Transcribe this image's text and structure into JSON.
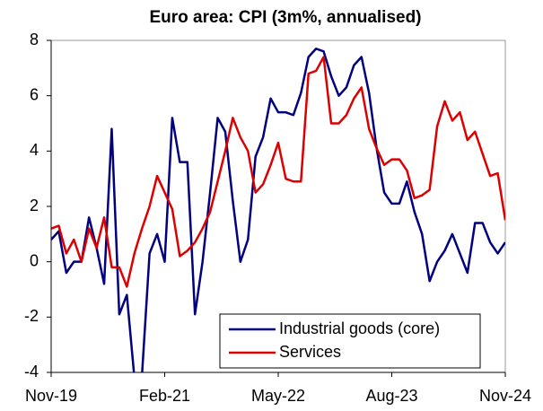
{
  "chart_data": {
    "type": "line",
    "title": "Euro area: CPI (3m%, annualised)",
    "categories": [
      "Nov-19",
      null,
      null,
      null,
      null,
      null,
      null,
      null,
      null,
      null,
      null,
      null,
      null,
      null,
      null,
      "Feb-21",
      null,
      null,
      null,
      null,
      null,
      null,
      null,
      null,
      null,
      null,
      null,
      null,
      null,
      null,
      "May-22",
      null,
      null,
      null,
      null,
      null,
      null,
      null,
      null,
      null,
      null,
      null,
      null,
      null,
      null,
      "Aug-23",
      null,
      null,
      null,
      null,
      null,
      null,
      null,
      null,
      null,
      null,
      null,
      null,
      null,
      null,
      "Nov-24"
    ],
    "series": [
      {
        "name": "Industrial goods (core)",
        "color": "#000080",
        "values": [
          0.8,
          1.1,
          -0.4,
          0.0,
          0.0,
          1.6,
          0.5,
          -0.8,
          4.8,
          -1.9,
          -1.2,
          -4.2,
          -4.1,
          0.3,
          1.0,
          0.0,
          5.2,
          3.6,
          3.6,
          -1.9,
          0.0,
          2.5,
          5.2,
          4.7,
          2.2,
          0.0,
          0.8,
          3.8,
          4.5,
          5.9,
          5.4,
          5.4,
          5.3,
          6.1,
          7.4,
          7.7,
          7.6,
          6.7,
          6.0,
          6.3,
          7.1,
          7.4,
          6.1,
          4.1,
          2.5,
          2.1,
          2.1,
          2.9,
          1.8,
          1.0,
          -0.7,
          0.0,
          0.4,
          1.0,
          0.3,
          -0.4,
          1.4,
          1.4,
          0.7,
          0.3,
          0.7
        ]
      },
      {
        "name": "Services",
        "color": "#dd0000",
        "values": [
          1.2,
          1.3,
          0.3,
          0.8,
          0.0,
          1.2,
          0.5,
          1.6,
          -0.2,
          -0.2,
          -0.9,
          0.3,
          1.2,
          2.0,
          3.1,
          2.5,
          1.9,
          0.2,
          0.4,
          0.7,
          1.2,
          1.8,
          2.9,
          4.0,
          5.2,
          4.5,
          4.0,
          2.5,
          2.8,
          3.5,
          4.3,
          3.0,
          2.9,
          2.9,
          6.8,
          6.9,
          7.4,
          5.0,
          5.0,
          5.3,
          5.9,
          6.3,
          4.8,
          4.1,
          3.5,
          3.7,
          3.7,
          3.3,
          2.3,
          2.4,
          2.6,
          4.9,
          5.8,
          5.1,
          5.4,
          4.4,
          4.7,
          3.9,
          3.1,
          3.2,
          1.5
        ]
      }
    ],
    "ylim": [
      -4,
      8
    ],
    "yticks": [
      -4,
      -2,
      0,
      2,
      4,
      6,
      8
    ],
    "legend": "lower right"
  }
}
